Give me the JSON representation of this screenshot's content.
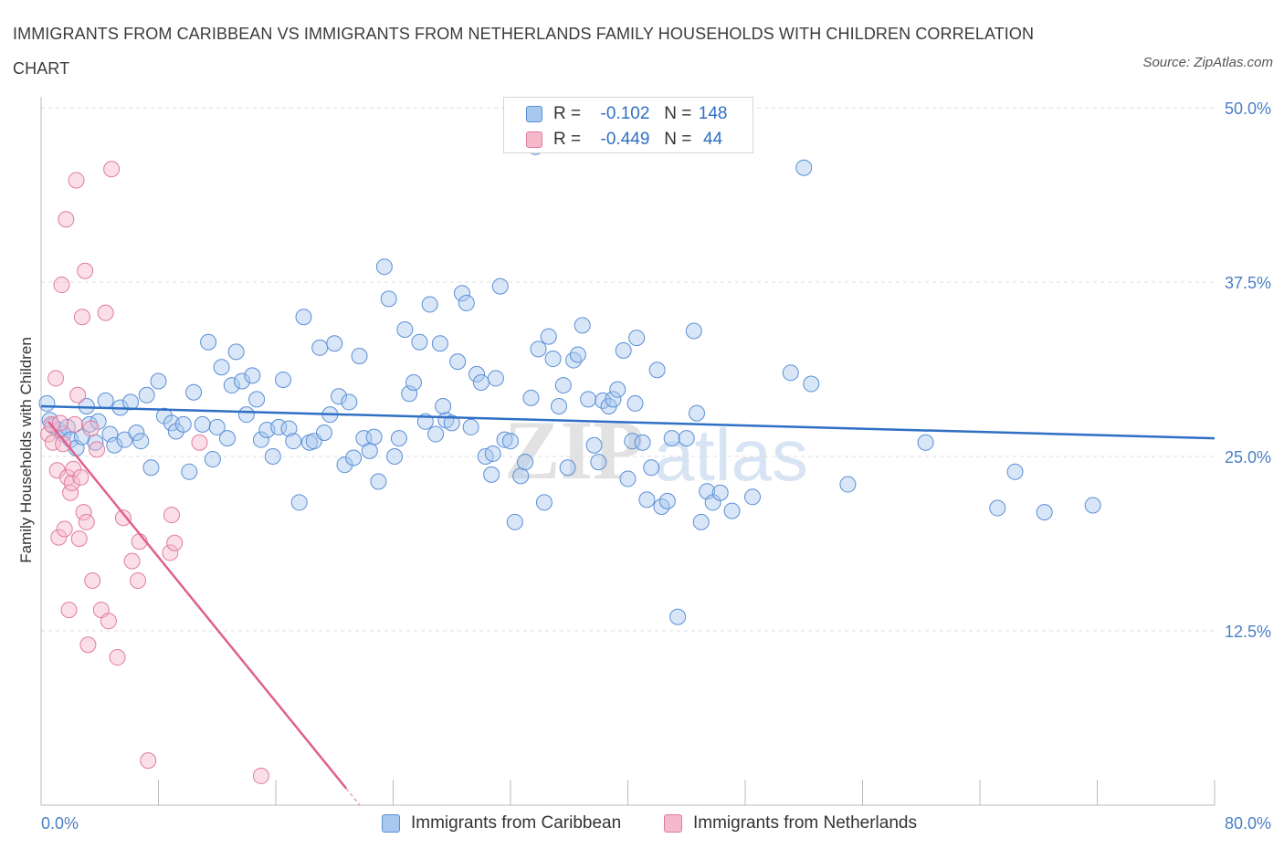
{
  "title": "IMMIGRANTS FROM CARIBBEAN VS IMMIGRANTS FROM NETHERLANDS FAMILY HOUSEHOLDS WITH CHILDREN CORRELATION CHART",
  "source": "Source: ZipAtlas.com",
  "watermark": {
    "zip": "ZIP",
    "atlas": "atlas"
  },
  "legend": {
    "rows": [
      {
        "r_label": "R =",
        "r_value": "-0.102",
        "n_label": "N =",
        "n_value": "148",
        "series": "caribbean"
      },
      {
        "r_label": "R =",
        "r_value": "-0.449",
        "n_label": "N =",
        "n_value": "44",
        "series": "netherlands"
      }
    ]
  },
  "colors": {
    "caribbean_fill": "#a9c8f0",
    "caribbean_stroke": "#5a8fd6",
    "caribbean_line": "#2f6fc4",
    "netherlands_fill": "#f6b9cb",
    "netherlands_stroke": "#e07c9c",
    "netherlands_line": "#e0608d",
    "grid": "#dddddd",
    "tick_text": "#4a7ec4"
  },
  "chart_data": {
    "type": "scatter",
    "ylabel": "Family Households with Children",
    "xlim": [
      0,
      80
    ],
    "ylim": [
      0,
      50
    ],
    "x_tick_labels": [
      "0.0%",
      "80.0%"
    ],
    "y_ticks": [
      {
        "value": 12.5,
        "label": "12.5%"
      },
      {
        "value": 25,
        "label": "25.0%"
      },
      {
        "value": 37.5,
        "label": "37.5%"
      },
      {
        "value": 50,
        "label": "50.0%"
      }
    ],
    "grid": true,
    "legend_position": "top-center",
    "series": [
      {
        "name": "Immigrants from Caribbean",
        "key": "caribbean",
        "trend": {
          "x": [
            0,
            80
          ],
          "y": [
            28.6,
            26.3
          ]
        },
        "points": [
          [
            0.4,
            28.8
          ],
          [
            0.6,
            27.6
          ],
          [
            0.8,
            27.2
          ],
          [
            1.2,
            26.9
          ],
          [
            1.5,
            26.6
          ],
          [
            1.8,
            27.1
          ],
          [
            2.0,
            26.2
          ],
          [
            2.4,
            25.6
          ],
          [
            2.8,
            26.4
          ],
          [
            3.1,
            28.6
          ],
          [
            3.3,
            27.3
          ],
          [
            3.7,
            26.0
          ],
          [
            3.9,
            27.5
          ],
          [
            4.4,
            29.0
          ],
          [
            4.7,
            26.6
          ],
          [
            5.0,
            25.8
          ],
          [
            5.4,
            28.5
          ],
          [
            5.7,
            26.2
          ],
          [
            6.1,
            28.9
          ],
          [
            6.5,
            26.7
          ],
          [
            6.8,
            26.1
          ],
          [
            7.2,
            29.4
          ],
          [
            7.5,
            24.2
          ],
          [
            8.0,
            30.4
          ],
          [
            8.4,
            27.9
          ],
          [
            8.9,
            27.4
          ],
          [
            9.2,
            26.8
          ],
          [
            9.7,
            27.3
          ],
          [
            10.1,
            23.9
          ],
          [
            10.4,
            29.6
          ],
          [
            11.0,
            27.3
          ],
          [
            11.4,
            33.2
          ],
          [
            11.7,
            24.8
          ],
          [
            12.0,
            27.1
          ],
          [
            12.3,
            31.4
          ],
          [
            12.7,
            26.3
          ],
          [
            13.0,
            30.1
          ],
          [
            13.3,
            32.5
          ],
          [
            13.7,
            30.4
          ],
          [
            14.0,
            28.0
          ],
          [
            14.4,
            30.8
          ],
          [
            14.7,
            29.1
          ],
          [
            15.0,
            26.2
          ],
          [
            15.4,
            26.9
          ],
          [
            15.8,
            25.0
          ],
          [
            16.2,
            27.1
          ],
          [
            16.5,
            30.5
          ],
          [
            16.9,
            27.0
          ],
          [
            17.2,
            26.1
          ],
          [
            17.6,
            21.7
          ],
          [
            17.9,
            35.0
          ],
          [
            18.3,
            26.0
          ],
          [
            18.6,
            26.1
          ],
          [
            19.0,
            32.8
          ],
          [
            19.3,
            26.7
          ],
          [
            19.7,
            28.0
          ],
          [
            20.0,
            33.1
          ],
          [
            20.3,
            29.3
          ],
          [
            20.7,
            24.4
          ],
          [
            21.0,
            28.9
          ],
          [
            21.3,
            24.9
          ],
          [
            21.7,
            32.2
          ],
          [
            22.0,
            26.3
          ],
          [
            22.4,
            25.4
          ],
          [
            22.7,
            26.4
          ],
          [
            23.0,
            23.2
          ],
          [
            23.4,
            38.6
          ],
          [
            23.7,
            36.3
          ],
          [
            24.1,
            25.0
          ],
          [
            24.4,
            26.3
          ],
          [
            24.8,
            34.1
          ],
          [
            25.1,
            29.5
          ],
          [
            25.4,
            30.3
          ],
          [
            25.8,
            33.2
          ],
          [
            26.2,
            27.5
          ],
          [
            26.5,
            35.9
          ],
          [
            26.9,
            26.6
          ],
          [
            27.2,
            33.1
          ],
          [
            27.6,
            27.6
          ],
          [
            28.0,
            27.4
          ],
          [
            28.4,
            31.8
          ],
          [
            28.7,
            36.7
          ],
          [
            29.0,
            36.0
          ],
          [
            29.3,
            27.1
          ],
          [
            29.7,
            30.9
          ],
          [
            30.0,
            30.3
          ],
          [
            30.3,
            25.0
          ],
          [
            30.7,
            23.7
          ],
          [
            31.0,
            30.6
          ],
          [
            31.3,
            37.2
          ],
          [
            31.6,
            26.2
          ],
          [
            32.0,
            26.1
          ],
          [
            32.3,
            20.3
          ],
          [
            32.7,
            23.6
          ],
          [
            33.0,
            24.6
          ],
          [
            33.4,
            29.2
          ],
          [
            33.7,
            47.2
          ],
          [
            33.9,
            32.7
          ],
          [
            34.3,
            21.7
          ],
          [
            34.6,
            33.6
          ],
          [
            34.9,
            32.0
          ],
          [
            35.3,
            28.6
          ],
          [
            35.6,
            30.1
          ],
          [
            35.9,
            24.2
          ],
          [
            36.3,
            31.9
          ],
          [
            36.6,
            32.3
          ],
          [
            36.9,
            34.4
          ],
          [
            37.3,
            29.1
          ],
          [
            37.7,
            25.8
          ],
          [
            38.0,
            24.6
          ],
          [
            38.3,
            29.0
          ],
          [
            38.7,
            28.6
          ],
          [
            39.0,
            29.1
          ],
          [
            39.3,
            29.8
          ],
          [
            39.7,
            32.6
          ],
          [
            40.0,
            23.4
          ],
          [
            40.3,
            26.1
          ],
          [
            40.6,
            33.5
          ],
          [
            41.0,
            26.0
          ],
          [
            41.3,
            21.9
          ],
          [
            41.6,
            24.2
          ],
          [
            42.0,
            31.2
          ],
          [
            42.3,
            21.4
          ],
          [
            42.7,
            21.8
          ],
          [
            43.0,
            26.3
          ],
          [
            43.4,
            13.5
          ],
          [
            44.0,
            26.3
          ],
          [
            44.5,
            34.0
          ],
          [
            44.7,
            28.1
          ],
          [
            45.0,
            20.3
          ],
          [
            45.4,
            22.5
          ],
          [
            45.8,
            21.7
          ],
          [
            46.3,
            22.4
          ],
          [
            47.1,
            21.1
          ],
          [
            48.5,
            22.1
          ],
          [
            51.1,
            31.0
          ],
          [
            52.0,
            45.7
          ],
          [
            52.5,
            30.2
          ],
          [
            55.0,
            23.0
          ],
          [
            60.3,
            26.0
          ],
          [
            65.2,
            21.3
          ],
          [
            66.4,
            23.9
          ],
          [
            68.4,
            21.0
          ],
          [
            71.7,
            21.5
          ],
          [
            40.5,
            28.8
          ],
          [
            30.8,
            25.2
          ],
          [
            27.4,
            28.6
          ]
        ]
      },
      {
        "name": "Immigrants from Netherlands",
        "key": "netherlands",
        "trend": {
          "x": [
            0.5,
            20.8
          ],
          "y": [
            27.5,
            1.2
          ]
        },
        "points": [
          [
            0.5,
            26.6
          ],
          [
            0.7,
            27.3
          ],
          [
            0.8,
            26.0
          ],
          [
            1.0,
            30.6
          ],
          [
            1.1,
            24.0
          ],
          [
            1.2,
            19.2
          ],
          [
            1.3,
            27.4
          ],
          [
            1.4,
            37.3
          ],
          [
            1.5,
            25.9
          ],
          [
            1.6,
            19.8
          ],
          [
            1.7,
            42.0
          ],
          [
            1.8,
            23.5
          ],
          [
            1.9,
            14.0
          ],
          [
            2.0,
            22.4
          ],
          [
            2.1,
            23.1
          ],
          [
            2.2,
            24.1
          ],
          [
            2.3,
            27.3
          ],
          [
            2.4,
            44.8
          ],
          [
            2.5,
            29.4
          ],
          [
            2.6,
            19.1
          ],
          [
            2.7,
            23.5
          ],
          [
            2.8,
            35.0
          ],
          [
            2.9,
            21.0
          ],
          [
            3.0,
            38.3
          ],
          [
            3.1,
            20.3
          ],
          [
            3.2,
            11.5
          ],
          [
            3.4,
            27.0
          ],
          [
            3.5,
            16.1
          ],
          [
            3.8,
            25.5
          ],
          [
            4.1,
            14.0
          ],
          [
            4.4,
            35.3
          ],
          [
            4.6,
            13.2
          ],
          [
            4.8,
            45.6
          ],
          [
            5.2,
            10.6
          ],
          [
            5.6,
            20.6
          ],
          [
            6.2,
            17.5
          ],
          [
            6.6,
            16.1
          ],
          [
            6.7,
            18.9
          ],
          [
            7.3,
            3.2
          ],
          [
            8.8,
            18.1
          ],
          [
            8.9,
            20.8
          ],
          [
            9.1,
            18.8
          ],
          [
            10.8,
            26.0
          ],
          [
            15.0,
            2.1
          ]
        ]
      }
    ]
  },
  "bottom_legend": [
    {
      "label": "Immigrants from Caribbean",
      "series": "caribbean"
    },
    {
      "label": "Immigrants from Netherlands",
      "series": "netherlands"
    }
  ]
}
